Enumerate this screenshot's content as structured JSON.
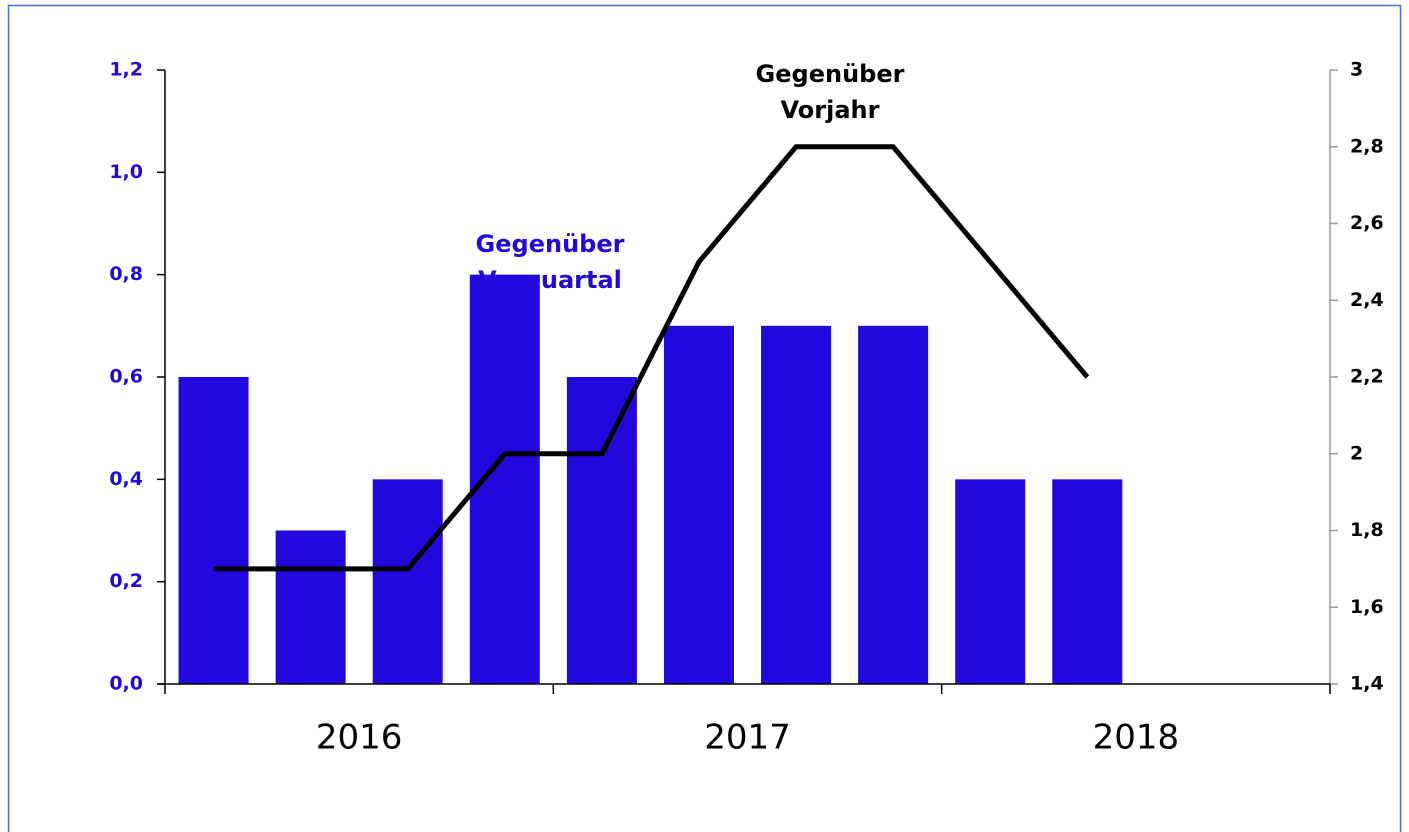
{
  "chart_data": {
    "type": "bar_line",
    "categories": [
      null,
      null,
      null,
      null,
      null,
      null,
      null,
      null,
      null,
      null,
      null,
      null
    ],
    "year_labels": [
      "2016",
      "2017",
      "2018"
    ],
    "series": [
      {
        "type": "bar",
        "axis": "y",
        "color": "#2208dc",
        "values": [
          0.6,
          0.3,
          0.4,
          0.8,
          0.6,
          0.7,
          0.7,
          0.7,
          0.4,
          0.4,
          null,
          null
        ]
      },
      {
        "type": "line",
        "axis": "y2",
        "color": "#000000",
        "values": [
          1.7,
          1.7,
          1.7,
          2.0,
          2.0,
          2.5,
          2.8,
          2.8,
          2.5,
          2.2,
          null,
          null
        ]
      }
    ],
    "ylim": [
      0,
      1.2
    ],
    "yticks": [
      {
        "value": 0,
        "label": "0,0"
      },
      {
        "value": 0.2,
        "label": "0,2"
      },
      {
        "value": 0.4,
        "label": "0,4"
      },
      {
        "value": 0.6,
        "label": "0,6"
      },
      {
        "value": 0.8,
        "label": "0,8"
      },
      {
        "value": 1.0,
        "label": "1,0"
      },
      {
        "value": 1.2,
        "label": "1,2"
      }
    ],
    "y2lim": [
      1.4,
      3
    ],
    "y2ticks": [
      {
        "value": 1.4,
        "label": "1,4"
      },
      {
        "value": 1.6,
        "label": "1,6"
      },
      {
        "value": 1.8,
        "label": "1,8"
      },
      2,
      {
        "value": 2.2,
        "label": "2,2"
      },
      {
        "value": 2.4,
        "label": "2,4"
      },
      {
        "value": 2.6,
        "label": "2,6"
      },
      {
        "value": 2.8,
        "label": "2,8"
      },
      3
    ],
    "annotations": [
      {
        "lines": [
          "Gegenüber",
          "Vorquartal"
        ],
        "color": "#2208dc"
      },
      {
        "lines": [
          "Gegenüber",
          "Vorjahr"
        ],
        "color": "#000000"
      }
    ]
  }
}
